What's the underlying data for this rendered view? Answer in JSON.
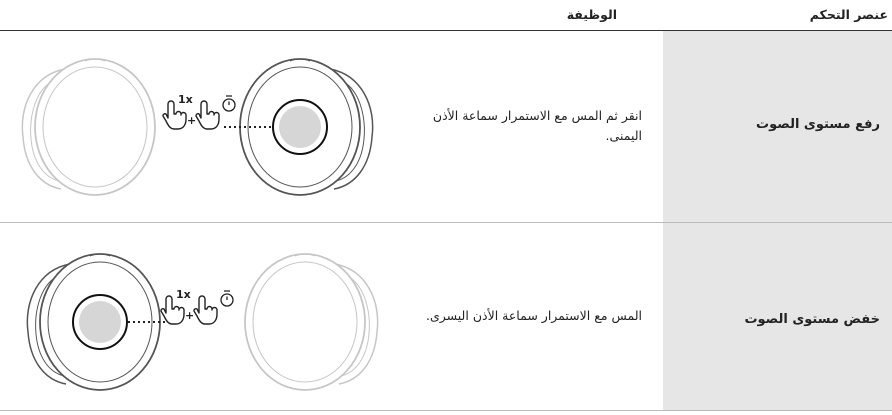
{
  "table": {
    "headers": [
      "عنصر التحكم",
      "الوظيفة"
    ],
    "rows": [
      {
        "control": "رفع مستوى الصوت",
        "function": "انقر ثم المس مع الاستمرار سماعة الأذن اليمنى.",
        "tap_label": "1x"
      },
      {
        "control": "خفض مستوى الصوت",
        "function": "المس مع الاستمرار سماعة الأذن اليسرى.",
        "tap_label": "1x"
      }
    ]
  }
}
